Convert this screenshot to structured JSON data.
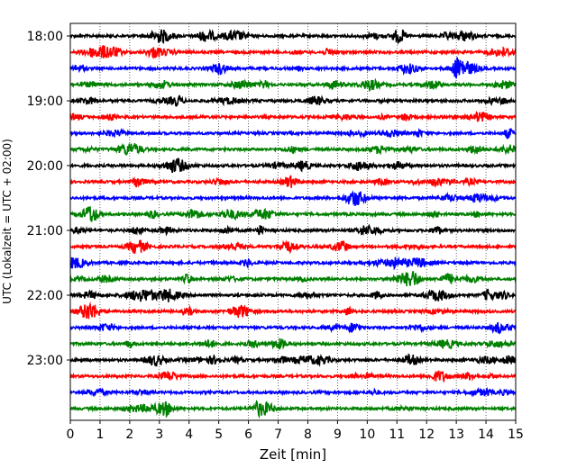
{
  "chart_data": {
    "type": "line",
    "title": "",
    "xlabel": "Zeit  [min]",
    "ylabel": "UTC (Lokalzeit = UTC + 02:00)",
    "xlim": [
      0,
      15
    ],
    "x_ticks": [
      "0",
      "1",
      "2",
      "3",
      "4",
      "5",
      "6",
      "7",
      "8",
      "9",
      "10",
      "11",
      "12",
      "13",
      "14",
      "15"
    ],
    "y_tick_labels": [
      "18:00",
      "19:00",
      "20:00",
      "21:00",
      "22:00",
      "23:00"
    ],
    "grid": "vertical dotted lines at each minute",
    "color_cycle": [
      "#000000",
      "#ff0000",
      "#0000ff",
      "#008000"
    ],
    "trace_interval_minutes": 15,
    "traces": [
      "18:00",
      "18:15",
      "18:30",
      "18:45",
      "19:00",
      "19:15",
      "19:30",
      "19:45",
      "20:00",
      "20:15",
      "20:30",
      "20:45",
      "21:00",
      "21:15",
      "21:30",
      "21:45",
      "22:00",
      "22:15",
      "22:30",
      "22:45",
      "23:00",
      "23:15",
      "23:30",
      "23:45"
    ]
  }
}
